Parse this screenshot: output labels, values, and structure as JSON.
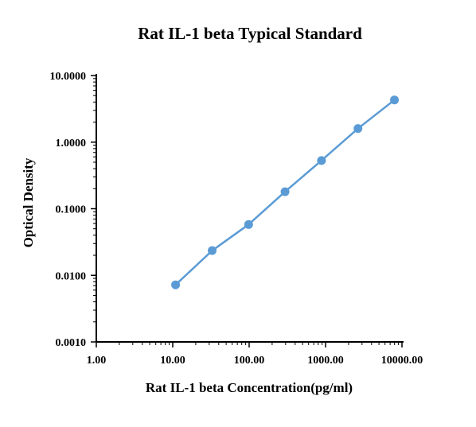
{
  "colors": {
    "series": "#5b9bd5",
    "axis": "#000000"
  },
  "chart_data": {
    "type": "line",
    "title": "Rat IL-1 beta Typical Standard",
    "xlabel": "Rat IL-1 beta Concentration(pg/ml)",
    "ylabel": "Optical Density",
    "xscale": "log",
    "yscale": "log",
    "xlim": [
      1,
      10000
    ],
    "ylim": [
      0.001,
      10
    ],
    "xticks": [
      {
        "value": 1,
        "label": "1.00"
      },
      {
        "value": 10,
        "label": "10.00"
      },
      {
        "value": 100,
        "label": "100.00"
      },
      {
        "value": 1000,
        "label": "1000.00"
      },
      {
        "value": 10000,
        "label": "10000.00"
      }
    ],
    "yticks": [
      {
        "value": 0.001,
        "label": "0.0010"
      },
      {
        "value": 0.01,
        "label": "0.0100"
      },
      {
        "value": 0.1,
        "label": "0.1000"
      },
      {
        "value": 1,
        "label": "1.0000"
      },
      {
        "value": 10,
        "label": "10.0000"
      }
    ],
    "grid": false,
    "series": [
      {
        "x": [
          10.9,
          32.8,
          98.4,
          295,
          885,
          2656,
          7969
        ],
        "y": [
          0.0072,
          0.0235,
          0.058,
          0.18,
          0.53,
          1.6,
          4.3
        ]
      }
    ]
  }
}
